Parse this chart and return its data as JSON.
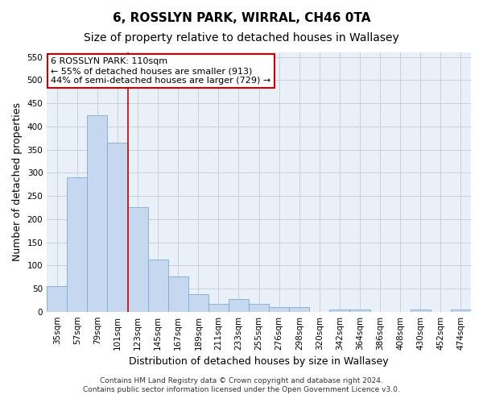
{
  "title": "6, ROSSLYN PARK, WIRRAL, CH46 0TA",
  "subtitle": "Size of property relative to detached houses in Wallasey",
  "xlabel": "Distribution of detached houses by size in Wallasey",
  "ylabel": "Number of detached properties",
  "footer1": "Contains HM Land Registry data © Crown copyright and database right 2024.",
  "footer2": "Contains public sector information licensed under the Open Government Licence v3.0.",
  "categories": [
    "35sqm",
    "57sqm",
    "79sqm",
    "101sqm",
    "123sqm",
    "145sqm",
    "167sqm",
    "189sqm",
    "211sqm",
    "233sqm",
    "255sqm",
    "276sqm",
    "298sqm",
    "320sqm",
    "342sqm",
    "364sqm",
    "386sqm",
    "408sqm",
    "430sqm",
    "452sqm",
    "474sqm"
  ],
  "values": [
    55,
    290,
    425,
    365,
    225,
    113,
    76,
    38,
    17,
    27,
    16,
    10,
    10,
    0,
    5,
    5,
    0,
    0,
    5,
    0,
    5
  ],
  "bar_color": "#c5d8f0",
  "bar_edge_color": "#7aadd4",
  "annotation_line1": "6 ROSSLYN PARK: 110sqm",
  "annotation_line2": "← 55% of detached houses are smaller (913)",
  "annotation_line3": "44% of semi-detached houses are larger (729) →",
  "annotation_box_color": "#ffffff",
  "annotation_border_color": "#cc0000",
  "vline_x": 3.52,
  "vline_color": "#cc0000",
  "ylim": [
    0,
    560
  ],
  "yticks": [
    0,
    50,
    100,
    150,
    200,
    250,
    300,
    350,
    400,
    450,
    500,
    550
  ],
  "background_color": "#ffffff",
  "plot_bg_color": "#eaf0f8",
  "grid_color": "#c8d0dc",
  "title_fontsize": 11,
  "subtitle_fontsize": 10,
  "axis_label_fontsize": 9,
  "tick_fontsize": 7.5,
  "annotation_fontsize": 8
}
